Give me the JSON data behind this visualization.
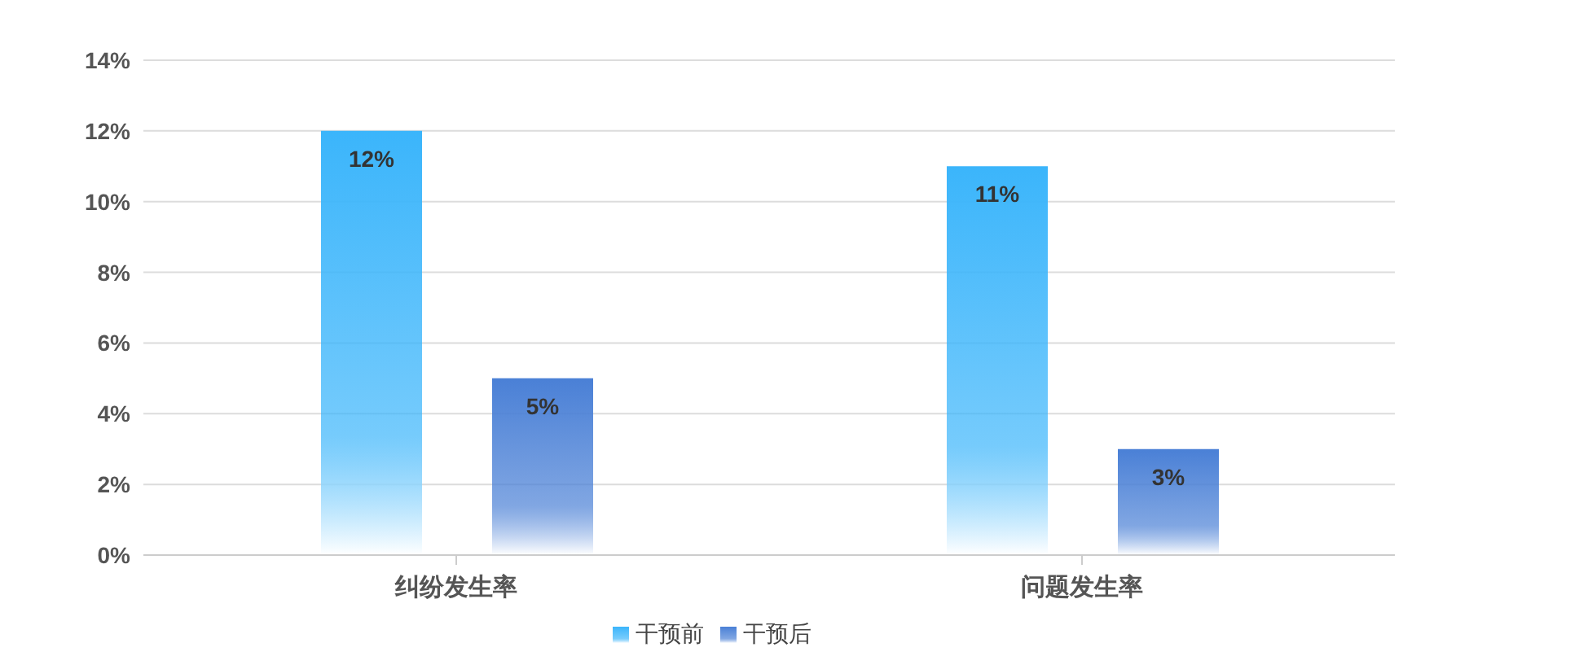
{
  "chart_data": {
    "type": "bar",
    "categories": [
      "纠纷发生率",
      "问题发生率"
    ],
    "series": [
      {
        "name": "干预前",
        "color": "#3bb5fb",
        "values": [
          12,
          11
        ],
        "value_labels": [
          "12%",
          "11%"
        ]
      },
      {
        "name": "干预后",
        "color": "#4a80d6",
        "values": [
          5,
          3
        ],
        "value_labels": [
          "5%",
          "3%"
        ]
      }
    ],
    "ylim": [
      0,
      14
    ],
    "yticks": [
      {
        "value": 0,
        "label": "0%"
      },
      {
        "value": 2,
        "label": "2%"
      },
      {
        "value": 4,
        "label": "4%"
      },
      {
        "value": 6,
        "label": "6%"
      },
      {
        "value": 8,
        "label": "8%"
      },
      {
        "value": 10,
        "label": "10%"
      },
      {
        "value": 12,
        "label": "12%"
      },
      {
        "value": 14,
        "label": "14%"
      }
    ],
    "grid": "y",
    "legend": "bottom"
  }
}
